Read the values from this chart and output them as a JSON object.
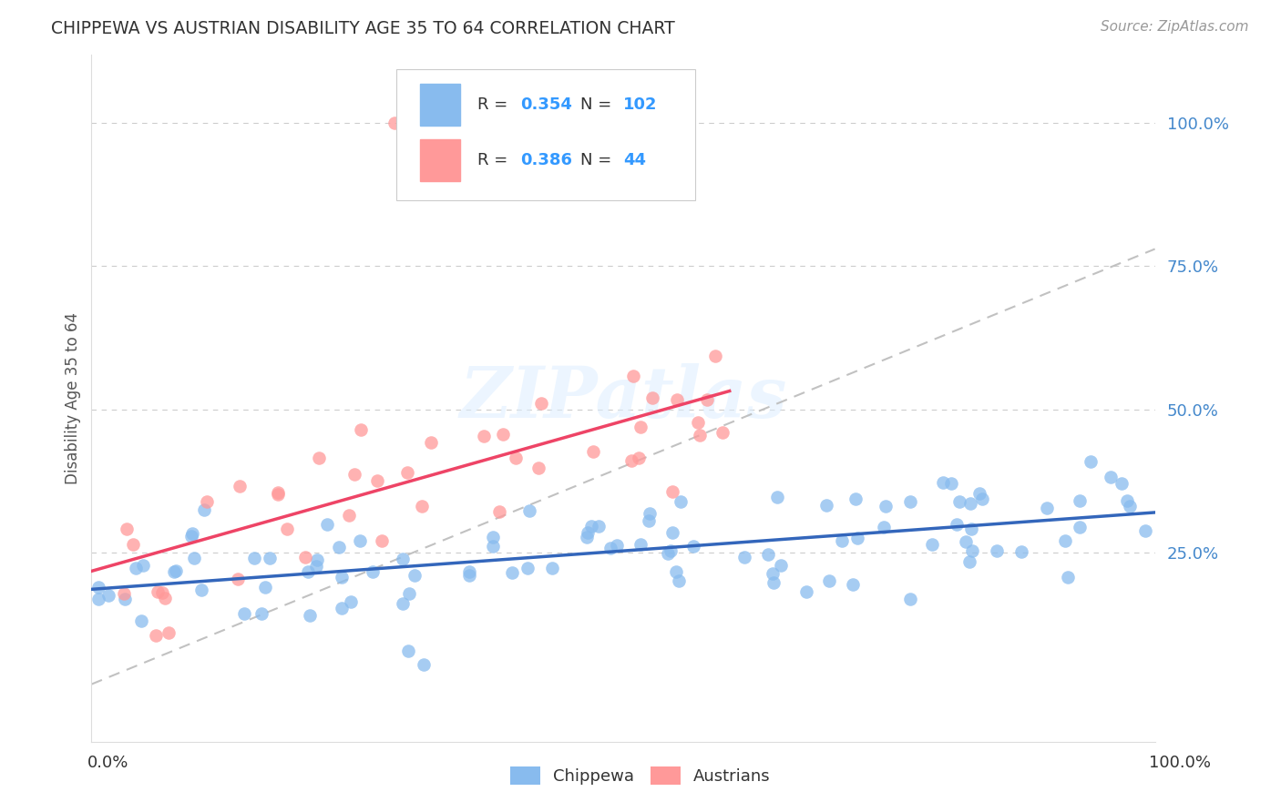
{
  "title": "CHIPPEWA VS AUSTRIAN DISABILITY AGE 35 TO 64 CORRELATION CHART",
  "ylabel": "Disability Age 35 to 64",
  "source": "Source: ZipAtlas.com",
  "watermark": "ZIPatlas",
  "chippewa_R": 0.354,
  "chippewa_N": 102,
  "austrian_R": 0.386,
  "austrian_N": 44,
  "chippewa_color": "#88BBEE",
  "austrian_color": "#FF9999",
  "chippewa_line_color": "#3366BB",
  "austrian_line_color": "#EE4466",
  "diag_line_color": "#BBBBBB",
  "background_color": "#FFFFFF",
  "grid_color": "#CCCCCC",
  "right_label_color": "#4488CC",
  "legend_text_color": "#333333",
  "legend_num_color": "#3399FF",
  "title_color": "#333333",
  "source_color": "#999999",
  "ytick_labels": [
    "25.0%",
    "50.0%",
    "75.0%",
    "100.0%"
  ],
  "ytick_vals": [
    0.25,
    0.5,
    0.75,
    1.0
  ],
  "xlim": [
    0.0,
    1.0
  ],
  "ylim": [
    -0.08,
    1.12
  ]
}
